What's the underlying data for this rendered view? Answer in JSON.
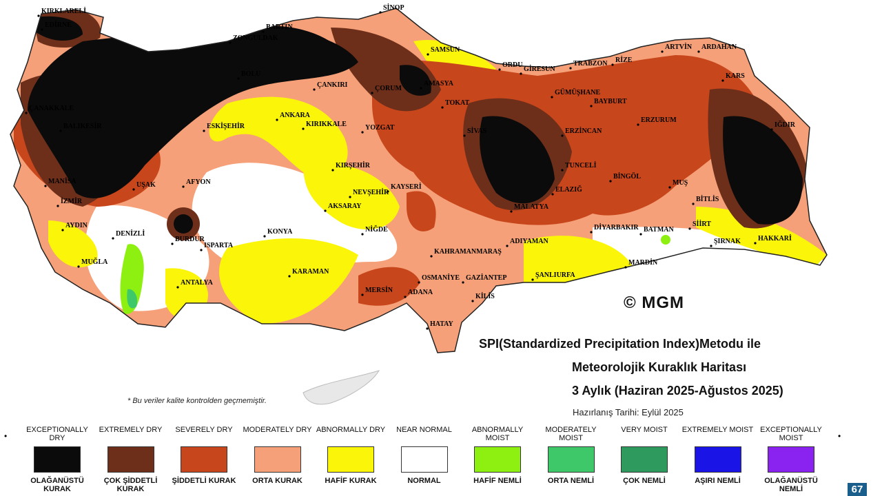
{
  "title": {
    "line1": "SPI(Standardized Precipitation Index)Metodu ile",
    "line2": "Meteorolojik Kuraklık Haritası",
    "line3": "3 Aylık (Haziran 2025-Ağustos 2025)"
  },
  "prepared_date": "Hazırlanış Tarihi: Eylül 2025",
  "note": "* Bu veriler kalite kontrolden geçmemiştir.",
  "copyright": "© MGM",
  "page_number": "67",
  "colors": {
    "exceptionally_dry": "#0b0b0b",
    "extremely_dry": "#6e2f1a",
    "severely_dry": "#c8461c",
    "moderately_dry": "#f5a078",
    "abnormally_dry": "#fbf50a",
    "near_normal": "#ffffff",
    "abnormally_moist": "#8ef010",
    "moderately_moist": "#3ec86a",
    "very_moist": "#2f9a5e"
  },
  "legend": [
    {
      "en": "EXCEPTIONALLY DRY",
      "tr": "OLAĞANÜSTÜ KURAK",
      "color": "#0b0b0b"
    },
    {
      "en": "EXTREMELY DRY",
      "tr": "ÇOK ŞİDDETLİ KURAK",
      "color": "#6e2f1a"
    },
    {
      "en": "SEVERELY DRY",
      "tr": "ŞİDDETLİ KURAK",
      "color": "#c8461c"
    },
    {
      "en": "MODERATELY DRY",
      "tr": "ORTA KURAK",
      "color": "#f5a078"
    },
    {
      "en": "ABNORMALLY DRY",
      "tr": "HAFİF KURAK",
      "color": "#fbf50a"
    },
    {
      "en": "NEAR NORMAL",
      "tr": "NORMAL",
      "color": "#ffffff"
    },
    {
      "en": "ABNORMALLY MOIST",
      "tr": "HAFİF NEMLİ",
      "color": "#8ef010"
    },
    {
      "en": "MODERATELY MOIST",
      "tr": "ORTA NEMLİ",
      "color": "#3ec86a"
    },
    {
      "en": "VERY MOIST",
      "tr": "ÇOK NEMLİ",
      "color": "#2f9a5e"
    },
    {
      "en": "EXTREMELY MOIST",
      "tr": "AŞIRI NEMLİ",
      "color": "#1a14e6"
    },
    {
      "en": "EXCEPTIONALLY MOIST",
      "tr": "OLAĞANÜSTÜ NEMLİ",
      "color": "#8a22f0"
    }
  ],
  "cities": [
    "KIRKLARELİ",
    "EDİRNE",
    "SİNOP",
    "BARTIN",
    "ZONGULDAK",
    "SAMSUN",
    "ORDU",
    "GİRESUN",
    "TRABZON",
    "RİZE",
    "ARTVİN",
    "ARDAHAN",
    "KARS",
    "IĞDIR",
    "ERZURUM",
    "BAYBURT",
    "GÜMÜŞHANE",
    "ERZİNCAN",
    "TOKAT",
    "AMASYA",
    "ÇORUM",
    "ÇANKIRI",
    "BOLU",
    "ÇANAKKALE",
    "BALIKESİR",
    "MANİSA",
    "İZMİR",
    "AYDIN",
    "MUĞLA",
    "DENİZLİ",
    "UŞAK",
    "AFYON",
    "BURDUR",
    "ISPARTA",
    "ANTALYA",
    "KONYA",
    "KARAMAN",
    "MERSİN",
    "ADANA",
    "OSMANİYE",
    "HATAY",
    "GAZİANTEP",
    "KİLİS",
    "ŞANLIURFA",
    "MARDİN",
    "ŞIRNAK",
    "HAKKARİ",
    "SİİRT",
    "BATMAN",
    "DİYARBAKIR",
    "BİTLİS",
    "MUŞ",
    "BİNGÖL",
    "TUNCELİ",
    "ELAZIĞ",
    "MALATYA",
    "ADIYAMAN",
    "KAHRAMANMARAŞ",
    "KAYSERİ",
    "SİVAS",
    "YOZGAT",
    "KIRIKKALE",
    "ANKARA",
    "KIRŞEHİR",
    "NEVŞEHİR",
    "AKSARAY",
    "NİĞDE",
    "ESKİŞEHİR"
  ]
}
